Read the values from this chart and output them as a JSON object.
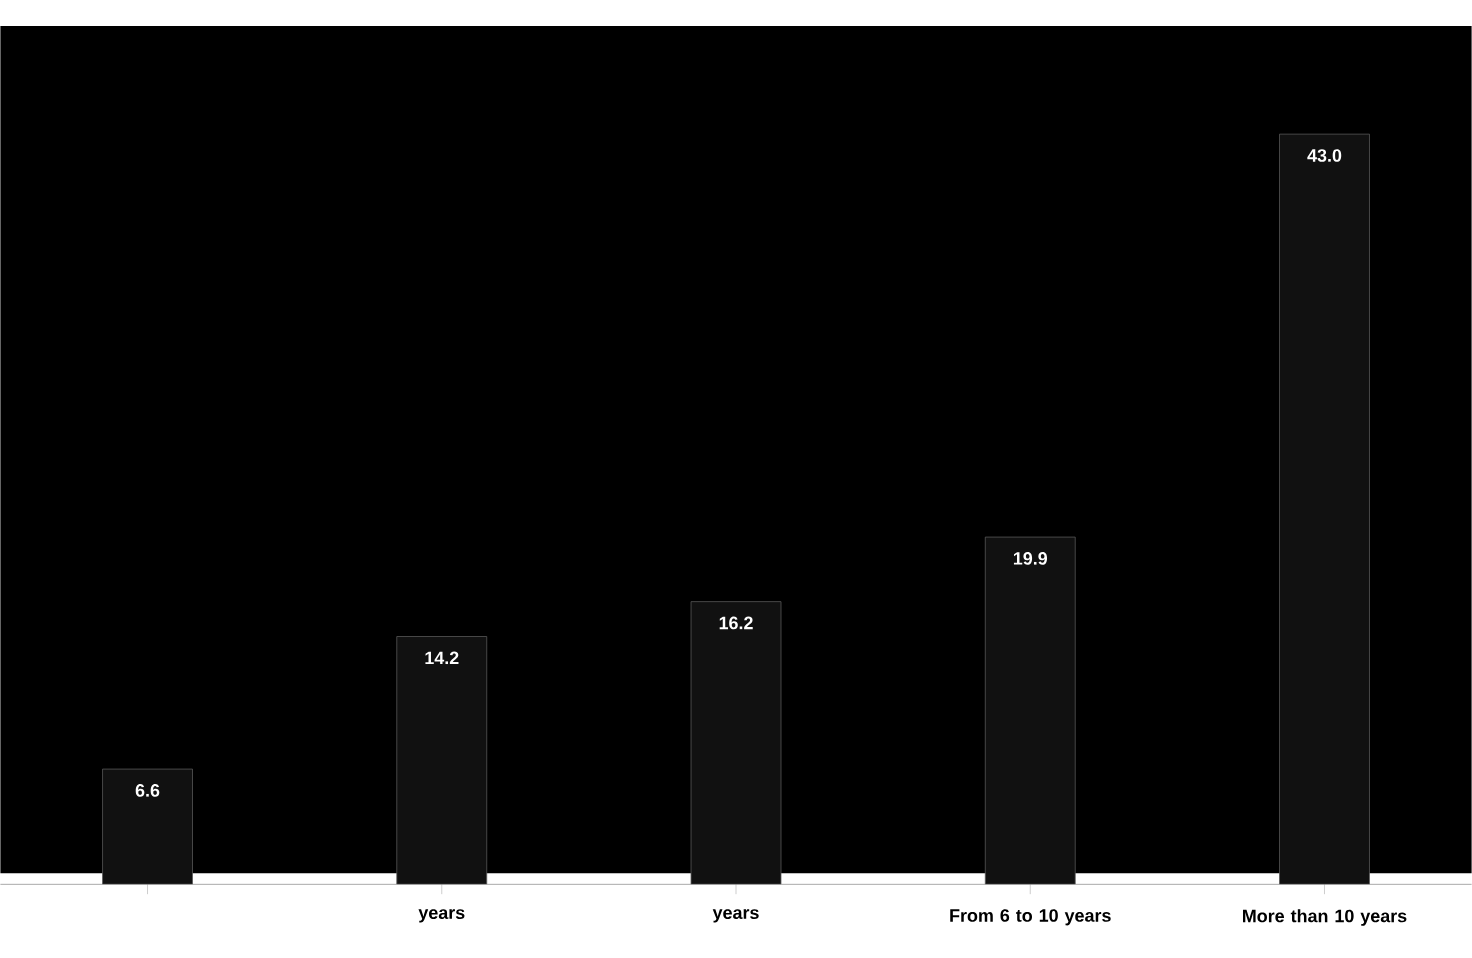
{
  "chart_data": {
    "type": "bar",
    "categories": [
      null,
      "years",
      "years",
      "From 6 to 10 years",
      "More than 10 years"
    ],
    "values": [
      6.6,
      14.2,
      16.2,
      19.9,
      43.0
    ],
    "color": "#111111",
    "value_labels": [
      "6.6",
      "14.2",
      "16.2",
      "19.9",
      "43.0"
    ]
  }
}
